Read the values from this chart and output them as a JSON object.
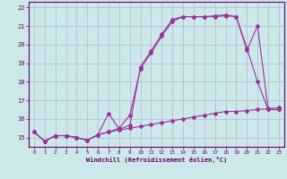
{
  "xlabel": "Windchill (Refroidissement éolien,°C)",
  "background_color": "#cce8e8",
  "grid_color": "#b0b8d8",
  "line_color": "#993399",
  "ylim": [
    14.5,
    22.3
  ],
  "xlim": [
    -0.5,
    23.5
  ],
  "yticks": [
    15,
    16,
    17,
    18,
    19,
    20,
    21,
    22
  ],
  "xticks": [
    0,
    1,
    2,
    3,
    4,
    5,
    6,
    7,
    8,
    9,
    10,
    11,
    12,
    13,
    14,
    15,
    16,
    17,
    18,
    19,
    20,
    21,
    22,
    23
  ],
  "series": [
    {
      "x": [
        0,
        1,
        2,
        3,
        4,
        5,
        6,
        7,
        8,
        9,
        10,
        11,
        12,
        13,
        14,
        15,
        16,
        17,
        18,
        19,
        20,
        21,
        22,
        23
      ],
      "y": [
        15.3,
        14.8,
        15.1,
        15.1,
        15.0,
        14.85,
        15.15,
        15.3,
        15.4,
        15.5,
        15.6,
        15.7,
        15.8,
        15.9,
        16.0,
        16.1,
        16.2,
        16.3,
        16.4,
        16.4,
        16.45,
        16.5,
        16.55,
        16.6
      ]
    },
    {
      "x": [
        0,
        1,
        2,
        3,
        4,
        5,
        6,
        7,
        8,
        9,
        10,
        11,
        12,
        13,
        14,
        15,
        16,
        17,
        18,
        19,
        20,
        21,
        22,
        23
      ],
      "y": [
        15.3,
        14.8,
        15.1,
        15.1,
        15.0,
        14.85,
        15.15,
        15.3,
        15.5,
        16.2,
        18.7,
        19.55,
        20.45,
        21.25,
        21.5,
        21.5,
        21.5,
        21.5,
        21.55,
        21.5,
        19.7,
        21.0,
        16.5,
        16.5
      ]
    },
    {
      "x": [
        0,
        1,
        2,
        3,
        4,
        5,
        6,
        7,
        8,
        9,
        10,
        11,
        12,
        13,
        14,
        15,
        16,
        17,
        18,
        19,
        20,
        21,
        22,
        23
      ],
      "y": [
        15.3,
        14.8,
        15.1,
        15.1,
        15.0,
        14.85,
        15.15,
        16.3,
        15.45,
        15.65,
        18.8,
        19.65,
        20.55,
        21.35,
        21.5,
        21.5,
        21.5,
        21.55,
        21.6,
        21.5,
        19.8,
        18.0,
        16.5,
        16.5
      ]
    }
  ]
}
